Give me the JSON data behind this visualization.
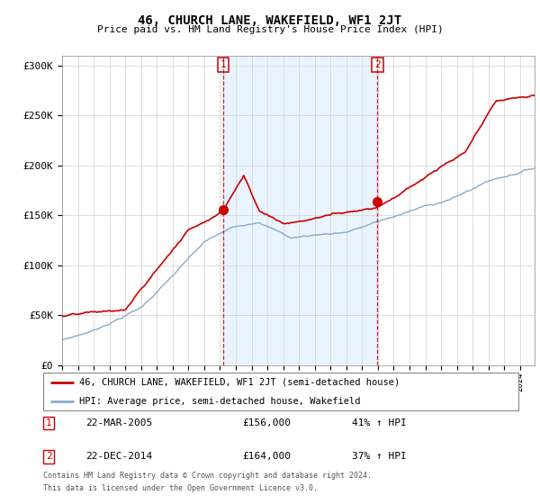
{
  "title": "46, CHURCH LANE, WAKEFIELD, WF1 2JT",
  "subtitle": "Price paid vs. HM Land Registry's House Price Index (HPI)",
  "ylim": [
    0,
    310000
  ],
  "yticks": [
    0,
    50000,
    100000,
    150000,
    200000,
    250000,
    300000
  ],
  "ytick_labels": [
    "£0",
    "£50K",
    "£100K",
    "£150K",
    "£200K",
    "£250K",
    "£300K"
  ],
  "sale1_date": "22-MAR-2005",
  "sale1_price": 156000,
  "sale1_pct": "41%",
  "sale2_date": "22-DEC-2014",
  "sale2_price": 164000,
  "sale2_pct": "37%",
  "sale1_year": 2005.22,
  "sale2_year": 2014.97,
  "xlim_start": 1995,
  "xlim_end": 2024.92,
  "legend_label_red": "46, CHURCH LANE, WAKEFIELD, WF1 2JT (semi-detached house)",
  "legend_label_blue": "HPI: Average price, semi-detached house, Wakefield",
  "footnote1": "Contains HM Land Registry data © Crown copyright and database right 2024.",
  "footnote2": "This data is licensed under the Open Government Licence v3.0.",
  "red_color": "#cc0000",
  "blue_color": "#88aacc",
  "vline_color": "#cc0000",
  "shade_color": "#ddeeff",
  "title_fontsize": 10,
  "subtitle_fontsize": 8
}
